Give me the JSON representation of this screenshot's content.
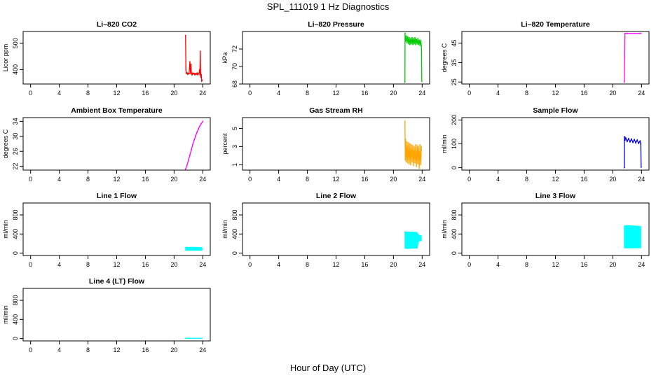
{
  "figure": {
    "title": "SPL_111019  1 Hz Diagnostics",
    "xlabel": "Hour of Day (UTC)"
  },
  "chart_data": [
    {
      "type": "line",
      "title": "Li–820 CO2",
      "ylabel": "Licor ppm",
      "color": "#ff0000",
      "xlim": [
        0,
        24
      ],
      "ylim": [
        345,
        545
      ],
      "xticks": [
        "0",
        "4",
        "8",
        "12",
        "16",
        "20",
        "24"
      ],
      "yticks": [
        400,
        500
      ],
      "x": [
        21.6,
        21.65,
        21.7,
        21.8,
        21.9,
        22.0,
        22.1,
        22.2,
        22.3,
        22.35,
        22.4,
        22.5,
        22.6,
        22.7,
        22.8,
        22.9,
        23.0,
        23.1,
        23.2,
        23.3,
        23.4,
        23.5,
        23.55,
        23.6,
        23.65,
        23.7,
        23.75,
        23.8,
        23.85,
        23.9
      ],
      "y": [
        530,
        400,
        385,
        388,
        382,
        386,
        384,
        430,
        385,
        420,
        388,
        380,
        387,
        383,
        386,
        380,
        385,
        382,
        387,
        380,
        385,
        388,
        400,
        380,
        470,
        386,
        370,
        380,
        355,
        360
      ]
    },
    {
      "type": "line",
      "title": "Li–820 Pressure",
      "ylabel": "kPa",
      "color": "#00cc00",
      "xlim": [
        0,
        24
      ],
      "ylim": [
        68,
        74
      ],
      "xticks": [
        "0",
        "4",
        "8",
        "12",
        "16",
        "20",
        "24"
      ],
      "yticks": [
        68,
        70,
        72
      ],
      "x": [
        21.6,
        21.62,
        21.7,
        21.8,
        21.9,
        22.0,
        22.1,
        22.2,
        22.3,
        22.4,
        22.5,
        22.6,
        22.7,
        22.8,
        22.9,
        23.0,
        23.1,
        23.2,
        23.3,
        23.4,
        23.5,
        23.6,
        23.7,
        23.8,
        23.9,
        23.95
      ],
      "y": [
        68.2,
        73.8,
        72.9,
        73.5,
        72.7,
        73.4,
        72.6,
        73.3,
        72.5,
        73.2,
        72.6,
        73.3,
        72.5,
        73.2,
        72.6,
        73.3,
        72.5,
        73.1,
        72.6,
        73.2,
        72.5,
        73.0,
        72.4,
        73.0,
        72.3,
        68.3
      ]
    },
    {
      "type": "line",
      "title": "Li–820 Temperature",
      "ylabel": "degrees C",
      "color": "#ff00ff",
      "xlim": [
        0,
        24
      ],
      "ylim": [
        24,
        51
      ],
      "xticks": [
        "0",
        "4",
        "8",
        "12",
        "16",
        "20",
        "24"
      ],
      "yticks": [
        25,
        35,
        45
      ],
      "x": [
        21.6,
        21.65,
        21.7,
        22.0,
        22.5,
        23.0,
        23.5,
        23.9
      ],
      "y": [
        25.0,
        38.0,
        50.0,
        50.0,
        50.0,
        50.0,
        50.0,
        50.0
      ]
    },
    {
      "type": "line",
      "title": "Ambient Box Temperature",
      "ylabel": "degrees C",
      "color": "#ff00ff",
      "xlim": [
        0,
        24
      ],
      "ylim": [
        21,
        35
      ],
      "xticks": [
        "0",
        "4",
        "8",
        "12",
        "16",
        "20",
        "24"
      ],
      "yticks": [
        22,
        26,
        30,
        34
      ],
      "x": [
        21.6,
        21.8,
        22.0,
        22.2,
        22.4,
        22.6,
        22.8,
        23.0,
        23.2,
        23.4,
        23.6,
        23.8,
        24.0
      ],
      "y": [
        21.2,
        22.3,
        23.6,
        25.0,
        26.4,
        27.8,
        29.0,
        30.1,
        31.1,
        32.0,
        32.8,
        33.4,
        34.0
      ]
    },
    {
      "type": "line",
      "title": "Gas Stream RH",
      "ylabel": "percent",
      "color": "#ffa500",
      "xlim": [
        0,
        24
      ],
      "ylim": [
        0.4,
        6.2
      ],
      "xticks": [
        "0",
        "4",
        "8",
        "12",
        "16",
        "20",
        "24"
      ],
      "yticks": [
        1,
        3,
        5
      ],
      "x": [
        21.6,
        21.65,
        21.7,
        21.8,
        21.9,
        22.0,
        22.1,
        22.2,
        22.3,
        22.4,
        22.5,
        22.6,
        22.7,
        22.8,
        22.9,
        23.0,
        23.1,
        23.2,
        23.3,
        23.4,
        23.5,
        23.6,
        23.7,
        23.8,
        23.9
      ],
      "y": [
        5.8,
        1.5,
        3.8,
        1.3,
        3.5,
        1.2,
        3.4,
        1.1,
        3.3,
        1.0,
        3.2,
        1.3,
        3.1,
        0.9,
        3.0,
        1.2,
        3.2,
        0.8,
        3.1,
        1.1,
        3.0,
        0.6,
        3.2,
        1.0,
        3.0
      ]
    },
    {
      "type": "line",
      "title": "Sample Flow",
      "ylabel": "ml/min",
      "color": "#0000cc",
      "xlim": [
        0,
        24
      ],
      "ylim": [
        -10,
        210
      ],
      "xticks": [
        "0",
        "4",
        "8",
        "12",
        "16",
        "20",
        "24"
      ],
      "yticks": [
        0,
        100,
        200
      ],
      "x": [
        21.6,
        21.62,
        21.7,
        21.8,
        22.0,
        22.2,
        22.4,
        22.6,
        22.8,
        23.0,
        23.2,
        23.4,
        23.6,
        23.8,
        23.9,
        23.95
      ],
      "y": [
        0,
        130,
        115,
        125,
        110,
        122,
        108,
        120,
        106,
        118,
        104,
        116,
        102,
        112,
        100,
        2
      ]
    },
    {
      "type": "area",
      "title": "Line 1 Flow",
      "ylabel": "ml/min",
      "color": "#00ffff",
      "xlim": [
        0,
        24
      ],
      "ylim": [
        -50,
        1050
      ],
      "xticks": [
        "0",
        "4",
        "8",
        "12",
        "16",
        "20",
        "24"
      ],
      "yticks": [
        0,
        400,
        800
      ],
      "x": [
        21.6,
        22.0,
        22.5,
        23.0,
        23.5,
        23.9
      ],
      "y_low": [
        60,
        58,
        60,
        62,
        60,
        58
      ],
      "y_high": [
        125,
        120,
        125,
        122,
        120,
        118
      ]
    },
    {
      "type": "area",
      "title": "Line 2 Flow",
      "ylabel": "ml/min",
      "color": "#00ffff",
      "xlim": [
        0,
        24
      ],
      "ylim": [
        -50,
        1050
      ],
      "xticks": [
        "0",
        "4",
        "8",
        "12",
        "16",
        "20",
        "24"
      ],
      "yticks": [
        0,
        400,
        800
      ],
      "x": [
        21.6,
        22.0,
        22.5,
        23.0,
        23.3,
        23.5,
        23.9
      ],
      "y_low": [
        100,
        95,
        100,
        105,
        100,
        250,
        260
      ],
      "y_high": [
        450,
        440,
        445,
        440,
        430,
        380,
        360
      ]
    },
    {
      "type": "area",
      "title": "Line 3 Flow",
      "ylabel": "ml/min",
      "color": "#00ffff",
      "xlim": [
        0,
        24
      ],
      "ylim": [
        -50,
        1050
      ],
      "xticks": [
        "0",
        "4",
        "8",
        "12",
        "16",
        "20",
        "24"
      ],
      "yticks": [
        0,
        400,
        800
      ],
      "x": [
        21.6,
        22.0,
        22.5,
        23.0,
        23.5,
        23.9
      ],
      "y_low": [
        110,
        105,
        110,
        108,
        112,
        110
      ],
      "y_high": [
        570,
        580,
        575,
        570,
        565,
        560
      ]
    },
    {
      "type": "line",
      "title": "Line 4 (LT) Flow",
      "ylabel": "ml/min",
      "color": "#00ffff",
      "xlim": [
        0,
        24
      ],
      "ylim": [
        -50,
        1050
      ],
      "xticks": [
        "0",
        "4",
        "8",
        "12",
        "16",
        "20",
        "24"
      ],
      "yticks": [
        0,
        400,
        800
      ],
      "x": [
        21.6,
        22.0,
        22.5,
        23.0,
        23.5,
        23.9
      ],
      "y": [
        5,
        6,
        5,
        5,
        6,
        5
      ]
    }
  ]
}
